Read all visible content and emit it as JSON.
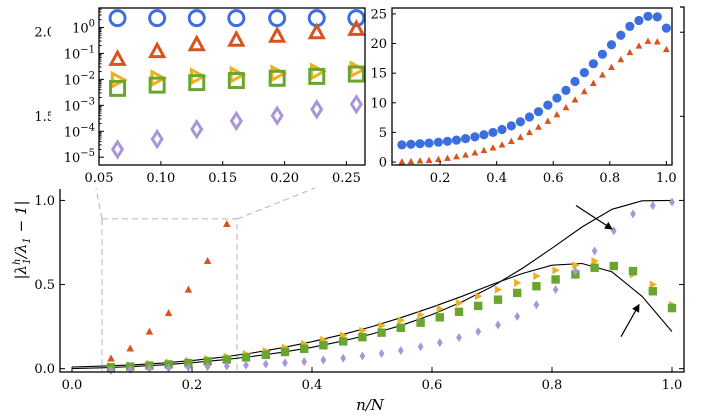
{
  "colors": {
    "blue": "#3b6fe0",
    "orange": "#d9531e",
    "gold": "#edb020",
    "green": "#6aa62e",
    "lavender": "#a995d8",
    "guide": "#b5b5b5"
  },
  "chart_data": [
    {
      "id": "main",
      "type": "scatter",
      "xlabel": "n/N",
      "ylabel": "|λ_1^h/λ_1 − 1|",
      "ylabel_parts": {
        "base": "|λ",
        "sup": "h",
        "sub": "1",
        "mid": "/λ",
        "sub2": "1",
        "tail": " − 1|"
      },
      "xlim": [
        -0.02,
        1.02
      ],
      "ylim": [
        -0.02,
        2.15
      ],
      "xticks": [
        0.0,
        0.2,
        0.4,
        0.6,
        0.8,
        1.0
      ],
      "xtick_labels": [
        "0.0",
        "0.2",
        "0.4",
        "0.6",
        "0.8",
        "1.0"
      ],
      "yticks": [
        0.0,
        0.5,
        1.0,
        1.5,
        2.0
      ],
      "ytick_labels": [
        "0.0",
        "0.5",
        "1.0",
        "1.5",
        "2.0"
      ],
      "series": [
        {
          "name": "orange-triangles",
          "marker": "triangle",
          "color": "orange",
          "x": [
            0.065,
            0.097,
            0.129,
            0.161,
            0.194,
            0.226,
            0.258
          ],
          "y": [
            0.06,
            0.12,
            0.22,
            0.33,
            0.47,
            0.64,
            0.86
          ]
        },
        {
          "name": "gold-right-triangles",
          "marker": "triangle-right",
          "color": "gold",
          "x": [
            0.065,
            0.097,
            0.129,
            0.161,
            0.194,
            0.226,
            0.258,
            0.29,
            0.323,
            0.355,
            0.387,
            0.419,
            0.452,
            0.484,
            0.516,
            0.548,
            0.581,
            0.613,
            0.645,
            0.677,
            0.71,
            0.742,
            0.774,
            0.806,
            0.839,
            0.871,
            0.903,
            0.935,
            0.968,
            1.0
          ],
          "y": [
            0.015,
            0.02,
            0.028,
            0.037,
            0.047,
            0.058,
            0.072,
            0.088,
            0.105,
            0.125,
            0.148,
            0.172,
            0.198,
            0.226,
            0.256,
            0.288,
            0.32,
            0.355,
            0.39,
            0.43,
            0.47,
            0.51,
            0.55,
            0.585,
            0.615,
            0.64,
            0.61,
            0.56,
            0.5,
            0.38
          ]
        },
        {
          "name": "green-squares",
          "marker": "square",
          "color": "green",
          "x": [
            0.065,
            0.097,
            0.129,
            0.161,
            0.194,
            0.226,
            0.258,
            0.29,
            0.323,
            0.355,
            0.387,
            0.419,
            0.452,
            0.484,
            0.516,
            0.548,
            0.581,
            0.613,
            0.645,
            0.677,
            0.71,
            0.742,
            0.774,
            0.806,
            0.839,
            0.871,
            0.903,
            0.935,
            0.968,
            1.0
          ],
          "y": [
            0.008,
            0.012,
            0.018,
            0.025,
            0.033,
            0.043,
            0.054,
            0.067,
            0.082,
            0.099,
            0.118,
            0.139,
            0.162,
            0.187,
            0.214,
            0.243,
            0.273,
            0.305,
            0.338,
            0.373,
            0.41,
            0.45,
            0.49,
            0.53,
            0.56,
            0.6,
            0.61,
            0.58,
            0.46,
            0.36
          ]
        },
        {
          "name": "lavender-diamonds",
          "marker": "diamond",
          "color": "lavender",
          "x": [
            0.065,
            0.097,
            0.129,
            0.161,
            0.194,
            0.226,
            0.258,
            0.29,
            0.323,
            0.355,
            0.387,
            0.419,
            0.452,
            0.484,
            0.516,
            0.548,
            0.581,
            0.613,
            0.645,
            0.677,
            0.71,
            0.742,
            0.774,
            0.806,
            0.839,
            0.871,
            0.903,
            0.935,
            0.968,
            1.0
          ],
          "y": [
            -0.01,
            -0.005,
            0.0,
            0.003,
            0.007,
            0.011,
            0.016,
            0.021,
            0.027,
            0.034,
            0.042,
            0.051,
            0.062,
            0.075,
            0.09,
            0.108,
            0.13,
            0.155,
            0.185,
            0.22,
            0.26,
            0.31,
            0.38,
            0.47,
            0.58,
            0.7,
            0.82,
            0.92,
            0.97,
            0.99
          ]
        }
      ],
      "curves": [
        {
          "name": "curve-top",
          "x": [
            0.0,
            0.05,
            0.1,
            0.15,
            0.2,
            0.25,
            0.3,
            0.35,
            0.4,
            0.45,
            0.5,
            0.55,
            0.6,
            0.65,
            0.7,
            0.75,
            0.8,
            0.85,
            0.9,
            0.95,
            1.0
          ],
          "y": [
            0.0,
            0.005,
            0.012,
            0.022,
            0.035,
            0.052,
            0.072,
            0.097,
            0.127,
            0.163,
            0.206,
            0.258,
            0.321,
            0.397,
            0.488,
            0.595,
            0.716,
            0.842,
            0.947,
            0.998,
            1.0
          ]
        },
        {
          "name": "curve-bottom",
          "x": [
            0.0,
            0.05,
            0.1,
            0.15,
            0.2,
            0.25,
            0.3,
            0.35,
            0.4,
            0.45,
            0.5,
            0.55,
            0.6,
            0.65,
            0.7,
            0.75,
            0.8,
            0.85,
            0.9,
            0.95,
            1.0
          ],
          "y": [
            0.01,
            0.015,
            0.022,
            0.033,
            0.048,
            0.068,
            0.093,
            0.124,
            0.16,
            0.202,
            0.25,
            0.305,
            0.365,
            0.43,
            0.5,
            0.565,
            0.615,
            0.625,
            0.575,
            0.43,
            0.22
          ]
        }
      ],
      "arrows": [
        {
          "name": "arrow-to-top-curve",
          "from": [
            0.84,
            0.97
          ],
          "to": [
            0.9,
            0.83
          ]
        },
        {
          "name": "arrow-to-bottom-curve",
          "from": [
            0.915,
            0.19
          ],
          "to": [
            0.945,
            0.38
          ]
        }
      ],
      "zoom_box": {
        "x": [
          0.05,
          0.275
        ],
        "y": [
          -0.02,
          0.89
        ]
      }
    },
    {
      "id": "inset-left",
      "type": "scatter",
      "yscale": "log",
      "xlim": [
        0.05,
        0.265
      ],
      "ylim_log": [
        -5.3,
        0.75
      ],
      "xticks": [
        0.05,
        0.1,
        0.15,
        0.2,
        0.25
      ],
      "xtick_labels": [
        "0.05",
        "0.10",
        "0.15",
        "0.20",
        "0.25"
      ],
      "yticks_exp": [
        0,
        -1,
        -2,
        -3,
        -4,
        -5
      ],
      "ytick_base": "10",
      "ytick_exponents": [
        "0",
        "−1",
        "−2",
        "−3",
        "−4",
        "−5"
      ],
      "series": [
        {
          "name": "blue-circles",
          "marker": "circle",
          "color": "blue",
          "x": [
            0.065,
            0.097,
            0.129,
            0.161,
            0.194,
            0.226,
            0.258
          ],
          "y": [
            2.3,
            2.3,
            2.3,
            2.3,
            2.3,
            2.3,
            2.3
          ]
        },
        {
          "name": "orange-triangles",
          "marker": "triangle",
          "color": "orange",
          "x": [
            0.065,
            0.097,
            0.129,
            0.161,
            0.194,
            0.226,
            0.258
          ],
          "y": [
            0.06,
            0.12,
            0.22,
            0.33,
            0.47,
            0.64,
            0.86
          ]
        },
        {
          "name": "gold-right-triangles",
          "marker": "triangle-right",
          "color": "gold",
          "x": [
            0.065,
            0.097,
            0.129,
            0.161,
            0.194,
            0.226,
            0.258
          ],
          "y": [
            0.0095,
            0.011,
            0.013,
            0.015,
            0.017,
            0.02,
            0.024
          ]
        },
        {
          "name": "green-squares",
          "marker": "square",
          "color": "green",
          "x": [
            0.065,
            0.097,
            0.129,
            0.161,
            0.194,
            0.226,
            0.258
          ],
          "y": [
            0.0045,
            0.006,
            0.0075,
            0.009,
            0.011,
            0.013,
            0.016
          ]
        },
        {
          "name": "lavender-diamonds",
          "marker": "diamond",
          "color": "lavender",
          "x": [
            0.065,
            0.097,
            0.129,
            0.161,
            0.194,
            0.226,
            0.258
          ],
          "y": [
            2e-05,
            5e-05,
            0.00012,
            0.00025,
            0.0004,
            0.0007,
            0.0011
          ]
        }
      ]
    },
    {
      "id": "inset-right",
      "type": "scatter",
      "xlim": [
        0.03,
        1.02
      ],
      "ylim": [
        -0.5,
        26
      ],
      "xticks": [
        0.2,
        0.4,
        0.6,
        0.8,
        1.0
      ],
      "xtick_labels": [
        "0.2",
        "0.4",
        "0.6",
        "0.8",
        "1.0"
      ],
      "yticks": [
        0,
        5,
        10,
        15,
        20,
        25
      ],
      "ytick_labels": [
        "0",
        "5",
        "10",
        "15",
        "20",
        "25"
      ],
      "series": [
        {
          "name": "blue-dots",
          "marker": "dot",
          "color": "blue",
          "x": [
            0.065,
            0.097,
            0.129,
            0.161,
            0.194,
            0.226,
            0.258,
            0.29,
            0.323,
            0.355,
            0.387,
            0.419,
            0.452,
            0.484,
            0.516,
            0.548,
            0.581,
            0.613,
            0.645,
            0.677,
            0.71,
            0.742,
            0.774,
            0.806,
            0.839,
            0.871,
            0.903,
            0.935,
            0.968,
            1.0
          ],
          "y": [
            2.9,
            3.0,
            3.1,
            3.2,
            3.35,
            3.5,
            3.7,
            3.95,
            4.25,
            4.6,
            5.0,
            5.5,
            6.1,
            6.8,
            7.6,
            8.5,
            9.6,
            10.8,
            12.1,
            13.6,
            15.1,
            16.6,
            18.2,
            19.8,
            21.4,
            22.9,
            23.9,
            24.6,
            24.5,
            22.6
          ]
        },
        {
          "name": "orange-small-triangles",
          "marker": "small-triangle",
          "color": "orange",
          "x": [
            0.065,
            0.097,
            0.129,
            0.161,
            0.194,
            0.226,
            0.258,
            0.29,
            0.323,
            0.355,
            0.387,
            0.419,
            0.452,
            0.484,
            0.516,
            0.548,
            0.581,
            0.613,
            0.645,
            0.677,
            0.71,
            0.742,
            0.774,
            0.806,
            0.839,
            0.871,
            0.903,
            0.935,
            0.968,
            1.0
          ],
          "y": [
            0.05,
            0.1,
            0.2,
            0.3,
            0.45,
            0.65,
            0.9,
            1.2,
            1.55,
            1.95,
            2.4,
            2.9,
            3.5,
            4.2,
            5.0,
            5.9,
            6.9,
            8.0,
            9.2,
            10.5,
            11.9,
            13.3,
            14.7,
            16.0,
            17.3,
            18.5,
            19.6,
            20.4,
            20.3,
            19.0
          ]
        }
      ]
    }
  ]
}
